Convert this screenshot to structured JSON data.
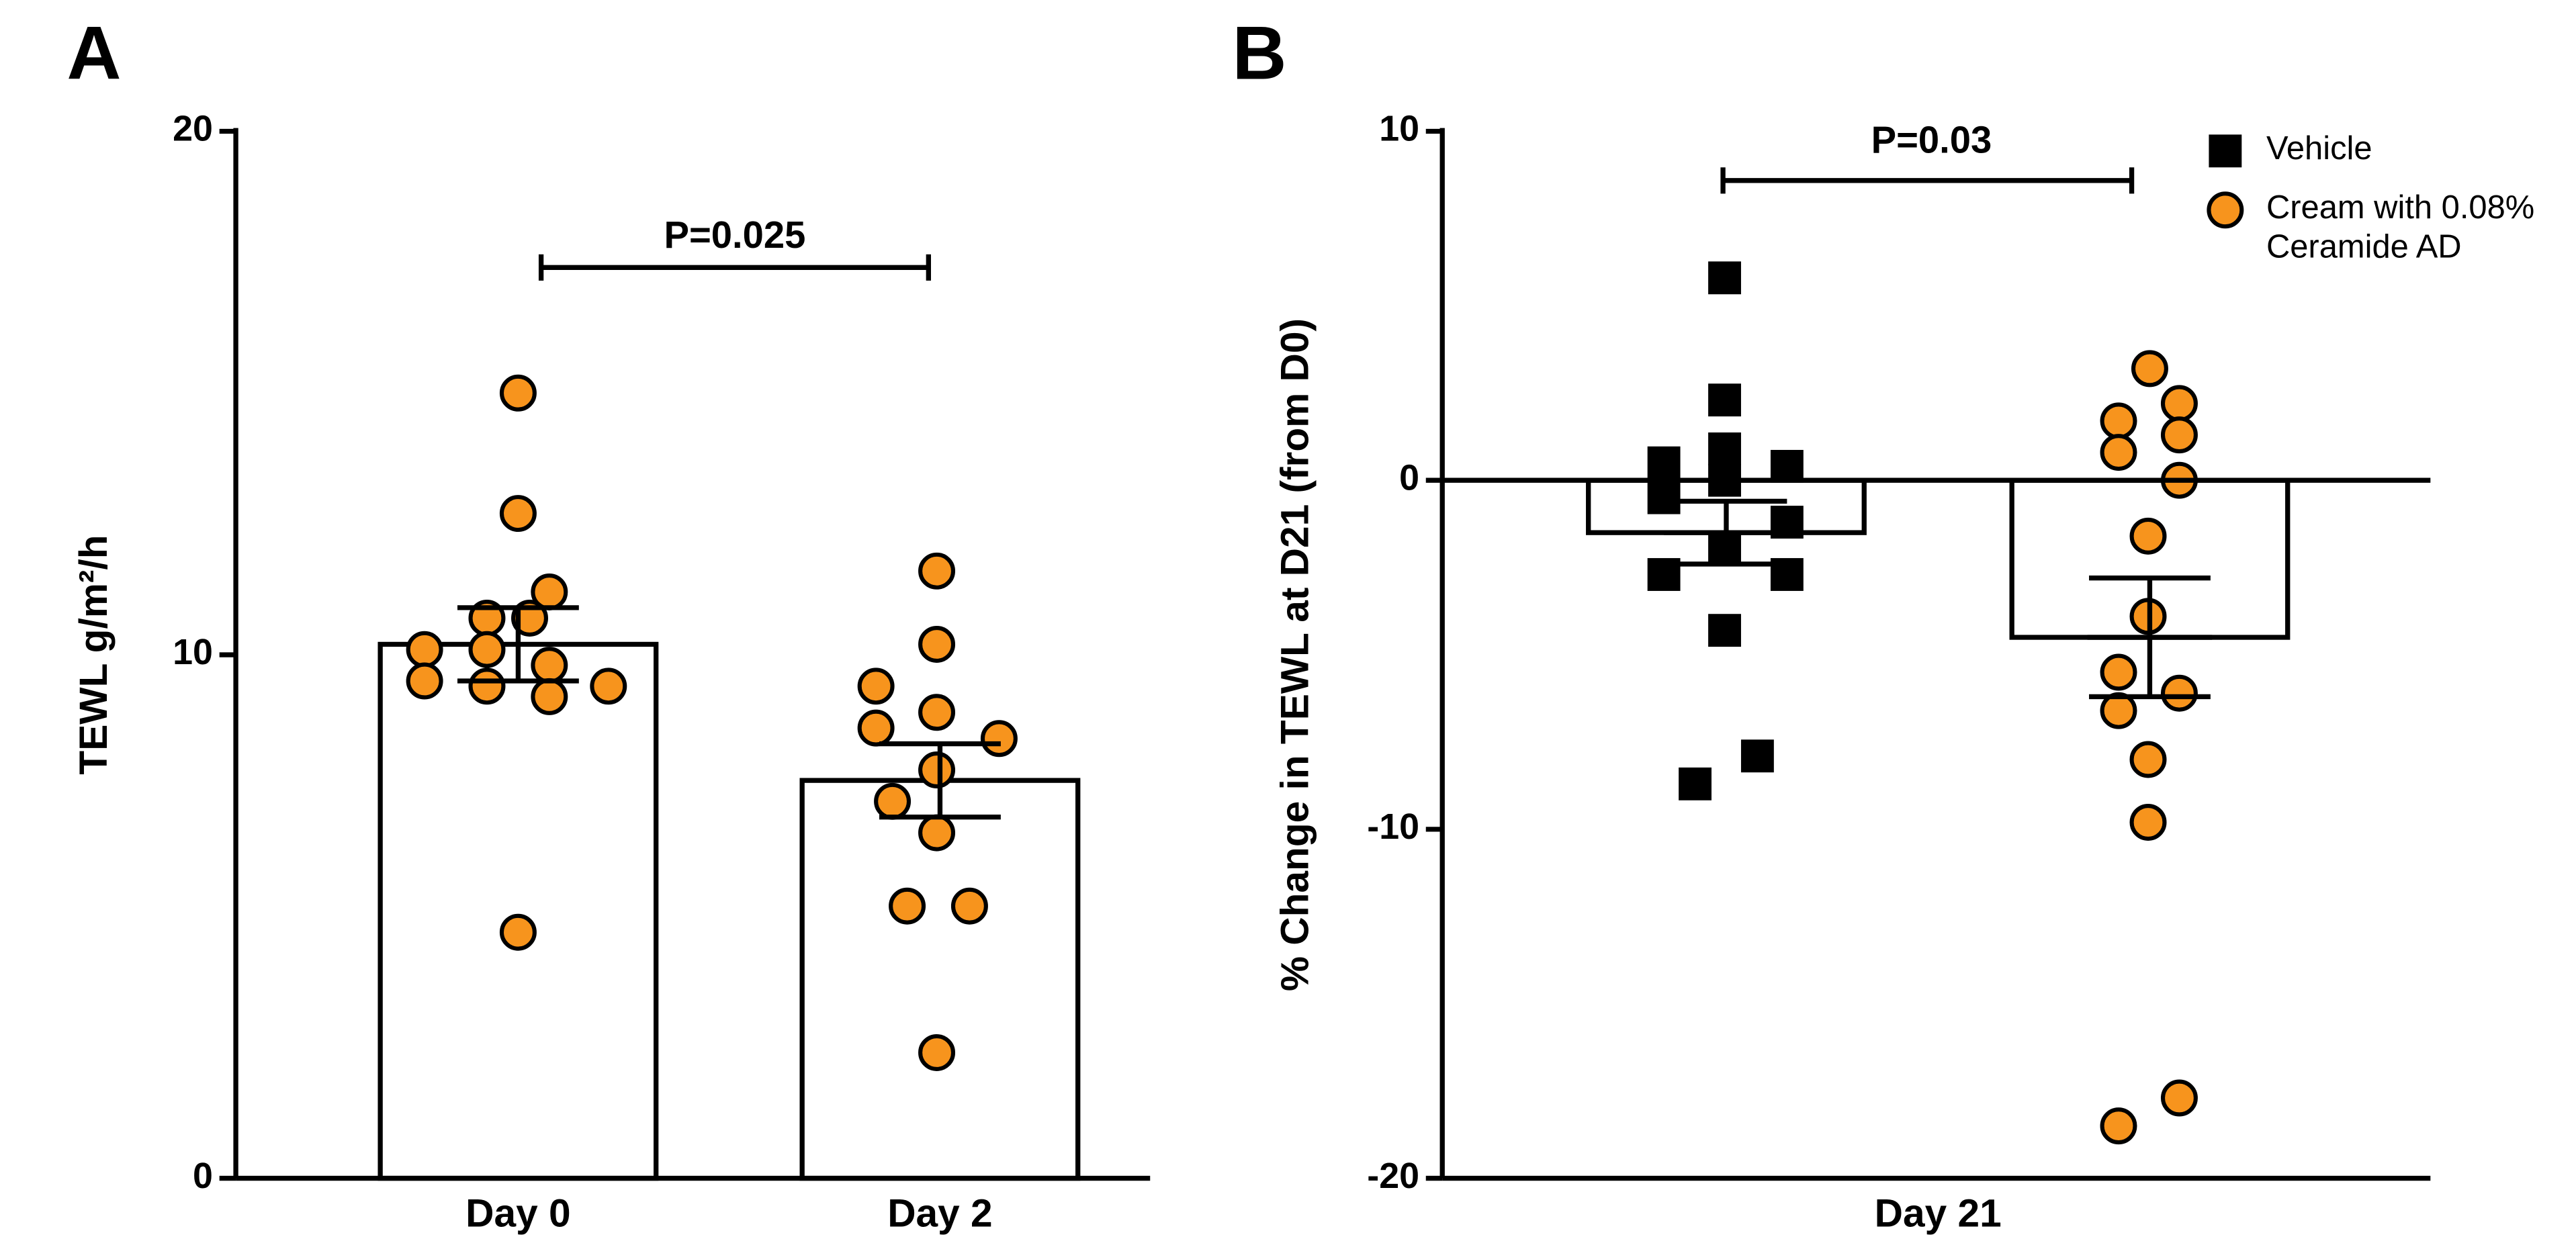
{
  "chart_data": [
    {
      "type": "bar",
      "panel": "A",
      "ylabel": "TEWL g/m²/h",
      "categories": [
        "Day 0",
        "Day 2"
      ],
      "values": [
        10.2,
        7.6
      ],
      "errors": [
        0.7,
        0.7
      ],
      "points": [
        [
          15.0,
          12.7,
          11.2,
          10.7,
          10.7,
          10.1,
          10.1,
          9.8,
          9.5,
          9.4,
          9.2,
          9.4,
          4.7
        ],
        [
          11.6,
          10.2,
          9.4,
          8.9,
          8.6,
          8.4,
          7.8,
          7.2,
          6.6,
          5.2,
          5.2,
          2.4
        ]
      ],
      "color": "#f7941d",
      "annotation": "P=0.025",
      "ylim": [
        0,
        20
      ],
      "yticks": [
        0,
        10,
        20
      ]
    },
    {
      "type": "bar",
      "panel": "B",
      "ylabel": "% Change in TEWL at D21 (from D0)",
      "categories": [
        "Day 21"
      ],
      "series": [
        {
          "name": "Vehicle",
          "color": "#000000",
          "marker": "square",
          "values": [
            -1.5
          ],
          "errors": [
            0.9
          ],
          "points": [
            5.8,
            2.3,
            0.5,
            0.4,
            0.9,
            0,
            -0.5,
            -1.2,
            -1.9,
            -2.7,
            -2.7,
            -4.3,
            -7.9,
            -8.7
          ]
        },
        {
          "name": "Cream with 0.08% Ceramide AD",
          "color": "#f7941d",
          "marker": "circle",
          "values": [
            -4.5
          ],
          "errors": [
            1.7
          ],
          "points": [
            3.2,
            1.7,
            2.2,
            0.8,
            1.3,
            0,
            -1.6,
            -3.9,
            -5.5,
            -6.1,
            -6.6,
            -8.0,
            -9.8,
            -17.7,
            -18.5
          ]
        }
      ],
      "annotation": "P=0.03",
      "legend": "upper right",
      "ylim": [
        -20,
        10
      ],
      "yticks": [
        10,
        0,
        -10,
        -20
      ]
    }
  ]
}
